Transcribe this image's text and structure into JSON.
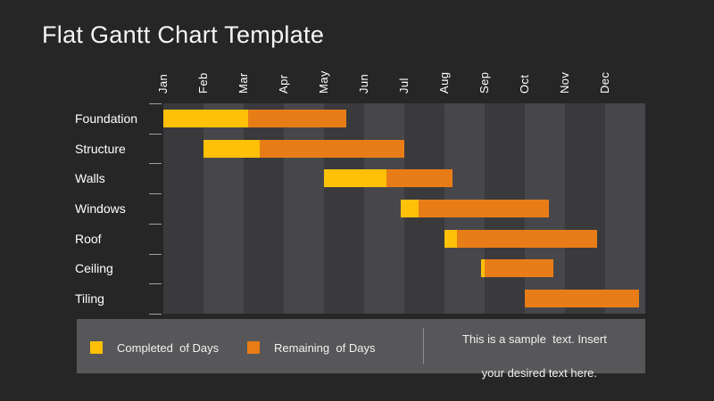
{
  "slide_title": "Flat Gantt Chart Template",
  "chart_data": {
    "type": "gantt",
    "title": "Flat Gantt Chart Template",
    "months": [
      "Jan",
      "Feb",
      "Mar",
      "Apr",
      "May",
      "Jun",
      "Jul",
      "Aug",
      "Sep",
      "Oct",
      "Nov",
      "Dec"
    ],
    "tasks": [
      "Foundation",
      "Structure",
      "Walls",
      "Windows",
      "Roof",
      "Ceiling",
      "Tiling"
    ],
    "bars": [
      {
        "task": "Foundation",
        "start_month": 0.0,
        "completed_until_month": 2.1,
        "end_month": 4.55
      },
      {
        "task": "Structure",
        "start_month": 1.0,
        "completed_until_month": 2.4,
        "end_month": 6.0
      },
      {
        "task": "Walls",
        "start_month": 4.0,
        "completed_until_month": 5.55,
        "end_month": 7.2
      },
      {
        "task": "Windows",
        "start_month": 5.9,
        "completed_until_month": 6.35,
        "end_month": 9.6
      },
      {
        "task": "Roof",
        "start_month": 7.0,
        "completed_until_month": 7.3,
        "end_month": 10.8
      },
      {
        "task": "Ceiling",
        "start_month": 7.9,
        "completed_until_month": 8.0,
        "end_month": 9.7
      },
      {
        "task": "Tiling",
        "start_month": 9.0,
        "completed_until_month": 9.0,
        "end_month": 11.85
      }
    ],
    "x_range_months": [
      0,
      12
    ],
    "grid": "alternating-month-bands",
    "legend_position": "bottom",
    "legend": [
      {
        "label": "Completed  of Days",
        "color": "#FFC008"
      },
      {
        "label": "Remaining  of Days",
        "color": "#E87D17"
      }
    ]
  },
  "legend": {
    "completed_label": "Completed  of Days",
    "remaining_label": "Remaining  of Days",
    "note_line1": "This is a sample  text. Insert",
    "note_line2": "your desired text here."
  },
  "colors": {
    "background": "#262626",
    "column_dark": "#3A3A3D",
    "column_light": "#47474B",
    "completed": "#FFC008",
    "remaining": "#E87D17",
    "legend_band": "#57575A",
    "tick": "#A0A0A0",
    "text": "#FFFFFF"
  }
}
